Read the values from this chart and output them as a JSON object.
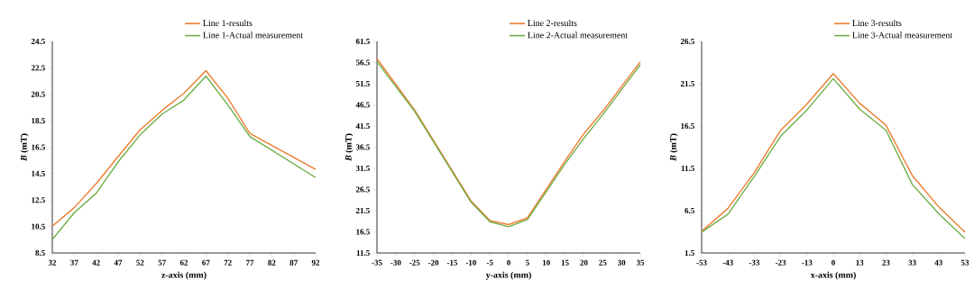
{
  "chart_data": [
    {
      "type": "line",
      "xlabel": "z-axis (mm)",
      "ylabel": "*B* (mT)",
      "x": [
        32,
        37,
        42,
        47,
        52,
        57,
        62,
        67,
        72,
        77,
        92
      ],
      "series": [
        {
          "name": "Line 1-results",
          "color": "#ed7d31",
          "values": [
            10.53,
            11.93,
            13.74,
            15.8,
            17.81,
            19.28,
            20.59,
            22.29,
            20.2,
            17.54,
            14.83
          ]
        },
        {
          "name": "Line 1-Actual measurement",
          "color": "#70ad47",
          "values": [
            9.52,
            11.55,
            13.02,
            15.39,
            17.43,
            19.0,
            20.07,
            21.88,
            19.69,
            17.31,
            14.2
          ]
        }
      ],
      "xlim": [
        32,
        92
      ],
      "ylim": [
        8.5,
        24.5
      ],
      "xticks": [
        32,
        37,
        42,
        47,
        52,
        57,
        62,
        67,
        72,
        77,
        82,
        87,
        92
      ],
      "yticks": [
        8.5,
        10.5,
        12.5,
        14.5,
        16.5,
        18.5,
        20.5,
        22.5,
        24.5
      ],
      "legend": "top right",
      "marker": "none",
      "line_style": "solid"
    },
    {
      "type": "line",
      "xlabel": "y-axis (mm)",
      "ylabel": "*B* (mT)",
      "x": [
        -35,
        -25,
        -10,
        -5,
        0,
        5,
        15,
        20,
        25,
        35
      ],
      "series": [
        {
          "name": "Line 2-results",
          "color": "#ed7d31",
          "values": [
            57.4,
            45.3,
            23.8,
            19.2,
            18.2,
            19.8,
            33.3,
            39.7,
            45.0,
            56.7
          ]
        },
        {
          "name": "Line 2-Actual measurement",
          "color": "#70ad47",
          "values": [
            56.7,
            45.0,
            23.5,
            18.9,
            17.7,
            19.4,
            32.6,
            38.6,
            44.2,
            56.0
          ]
        }
      ],
      "xlim": [
        -35,
        35
      ],
      "ylim": [
        11.5,
        61.5
      ],
      "xticks": [
        -35,
        -30,
        -25,
        -20,
        -15,
        -10,
        -5,
        0,
        5,
        10,
        15,
        20,
        25,
        30,
        35
      ],
      "yticks": [
        11.5,
        16.5,
        21.5,
        26.5,
        31.5,
        36.5,
        41.5,
        46.5,
        51.5,
        56.5,
        61.5
      ],
      "legend": "top right",
      "marker": "none",
      "line_style": "solid"
    },
    {
      "type": "line",
      "xlabel": "x-axis (mm)",
      "ylabel": "*B* (mT)",
      "categories": [
        "-53",
        "-43",
        "-33",
        "-23",
        "-13",
        "0",
        "13",
        "23",
        "33",
        "43",
        "53"
      ],
      "series": [
        {
          "name": "Line 3-results",
          "color": "#ed7d31",
          "values": [
            4.07,
            6.78,
            11.0,
            16.0,
            19.1,
            22.7,
            19.2,
            16.6,
            10.65,
            6.96,
            3.96
          ]
        },
        {
          "name": "Line 3-Actual measurement",
          "color": "#70ad47",
          "values": [
            3.96,
            6.08,
            10.55,
            15.3,
            18.4,
            22.1,
            18.5,
            16.0,
            9.6,
            6.15,
            3.19
          ]
        }
      ],
      "ylim": [
        1.5,
        26.5
      ],
      "yticks": [
        1.5,
        6.5,
        11.5,
        16.5,
        21.5,
        26.5
      ],
      "legend": "top right",
      "marker": "none",
      "line_style": "solid"
    }
  ]
}
